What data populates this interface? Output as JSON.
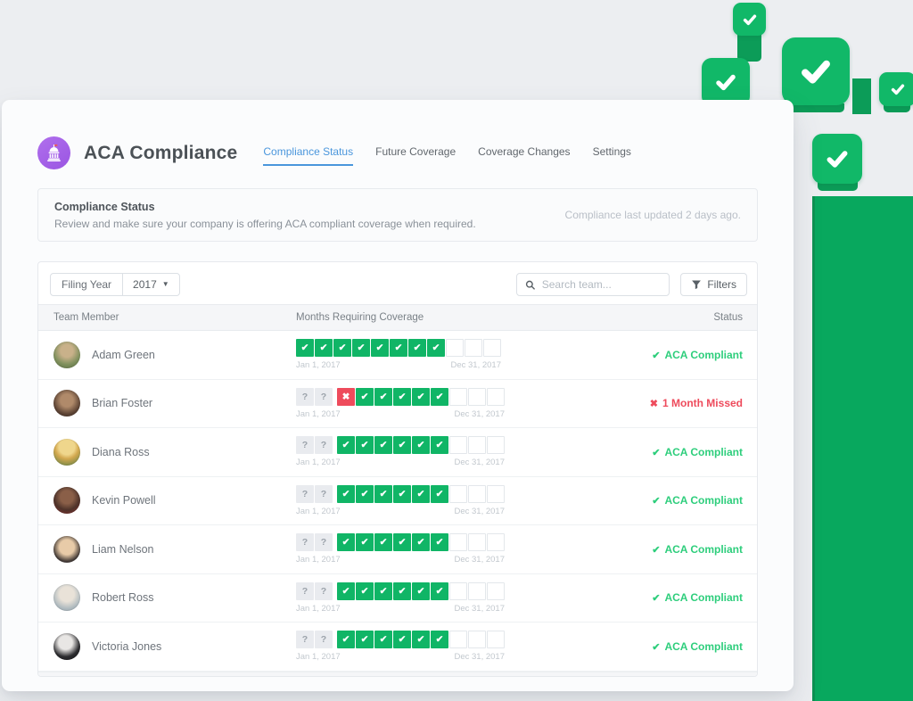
{
  "header": {
    "app_title": "ACA Compliance",
    "logo_icon": "capitol-icon",
    "tabs": [
      {
        "label": "Compliance Status",
        "active": true
      },
      {
        "label": "Future Coverage",
        "active": false
      },
      {
        "label": "Coverage Changes",
        "active": false
      },
      {
        "label": "Settings",
        "active": false
      }
    ]
  },
  "status_panel": {
    "title": "Compliance Status",
    "description": "Review and make sure your company is offering ACA compliant coverage when required.",
    "last_updated": "Compliance last updated 2 days ago."
  },
  "toolbar": {
    "filing_year_label": "Filing Year",
    "filing_year_value": "2017",
    "search_icon": "search-icon",
    "search_placeholder": "Search team...",
    "filters_icon": "funnel-icon",
    "filters_label": "Filters"
  },
  "table": {
    "columns": [
      "Team Member",
      "Months Requiring Coverage",
      "Status"
    ],
    "timeline": {
      "start_label": "Jan 1, 2017",
      "end_label": "Dec 31, 2017",
      "cells_total": 11
    },
    "cell_glyphs": {
      "check": "✔",
      "missed": "✖",
      "unknown": "?",
      "empty": ""
    },
    "status_icons": {
      "compliant": "✔",
      "missed": "✖"
    },
    "rows": [
      {
        "name": "Adam Green",
        "months": [
          "check",
          "check",
          "check",
          "check",
          "check",
          "check",
          "check",
          "check",
          "empty",
          "empty",
          "empty"
        ],
        "status_label": "ACA Compliant",
        "status_type": "compliant"
      },
      {
        "name": "Brian Foster",
        "months": [
          "unknown",
          "unknown",
          "missed",
          "check",
          "check",
          "check",
          "check",
          "check",
          "empty",
          "empty",
          "empty"
        ],
        "status_label": "1 Month Missed",
        "status_type": "missed"
      },
      {
        "name": "Diana Ross",
        "months": [
          "unknown",
          "unknown",
          "check",
          "check",
          "check",
          "check",
          "check",
          "check",
          "empty",
          "empty",
          "empty"
        ],
        "status_label": "ACA Compliant",
        "status_type": "compliant"
      },
      {
        "name": "Kevin Powell",
        "months": [
          "unknown",
          "unknown",
          "check",
          "check",
          "check",
          "check",
          "check",
          "check",
          "empty",
          "empty",
          "empty"
        ],
        "status_label": "ACA Compliant",
        "status_type": "compliant"
      },
      {
        "name": "Liam Nelson",
        "months": [
          "unknown",
          "unknown",
          "check",
          "check",
          "check",
          "check",
          "check",
          "check",
          "empty",
          "empty",
          "empty"
        ],
        "status_label": "ACA Compliant",
        "status_type": "compliant"
      },
      {
        "name": "Robert Ross",
        "months": [
          "unknown",
          "unknown",
          "check",
          "check",
          "check",
          "check",
          "check",
          "check",
          "empty",
          "empty",
          "empty"
        ],
        "status_label": "ACA Compliant",
        "status_type": "compliant"
      },
      {
        "name": "Victoria Jones",
        "months": [
          "unknown",
          "unknown",
          "check",
          "check",
          "check",
          "check",
          "check",
          "check",
          "empty",
          "empty",
          "empty"
        ],
        "status_label": "ACA Compliant",
        "status_type": "compliant"
      }
    ]
  },
  "decor": {
    "icon": "check-icon",
    "floating_check_count": 5
  },
  "colors": {
    "cell_green": "#10B566",
    "status_green": "#2ECE7C",
    "red": "#EE4B5C",
    "accent_blue": "#4A96DC",
    "logo_purple": "#A25FE6",
    "decor_green": "#11B868",
    "decor_green_dark": "#0C9C58",
    "bar_green": "#08A85E",
    "unknown_cell": "#E9EBEF"
  }
}
